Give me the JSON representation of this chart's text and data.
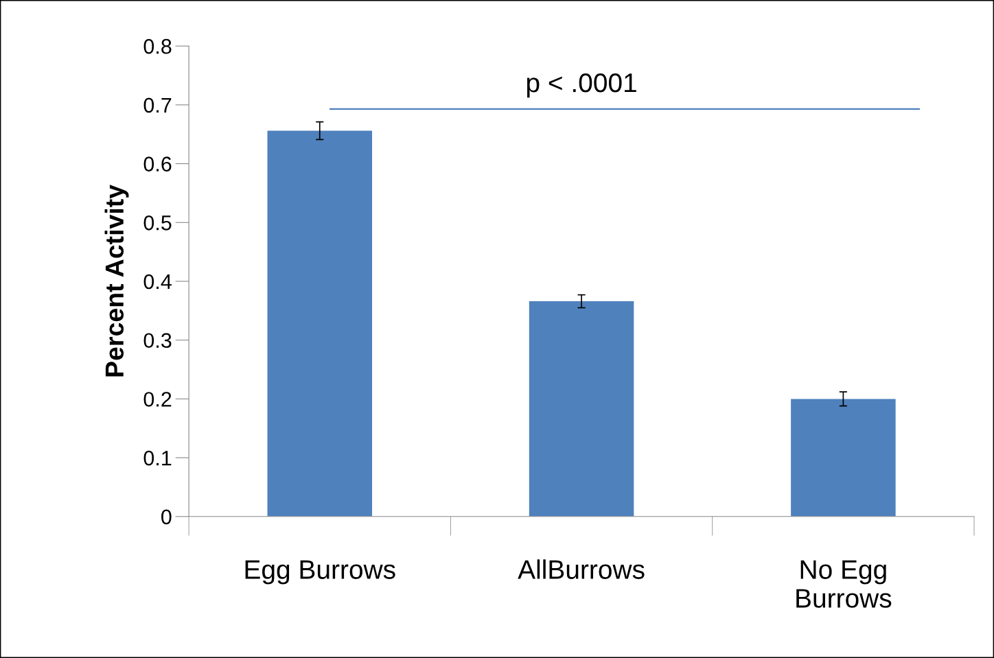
{
  "chart_data": {
    "type": "bar",
    "ylabel": "Percent Activity",
    "categories": [
      "Egg Burrows",
      "AllBurrows",
      "No Egg\nBurrows"
    ],
    "values": [
      0.656,
      0.366,
      0.2
    ],
    "errors": [
      0.015,
      0.011,
      0.012
    ],
    "color": "#4f81bd",
    "ylim": [
      0,
      0.8
    ],
    "yticks": [
      0,
      0.1,
      0.2,
      0.3,
      0.4,
      0.5,
      0.6,
      0.7,
      0.8
    ],
    "ref_lines": [
      {
        "axis": "y",
        "value": 0.693,
        "label": "p < .0001",
        "color": "#4f81bd"
      }
    ],
    "grid": false,
    "legend": false
  }
}
